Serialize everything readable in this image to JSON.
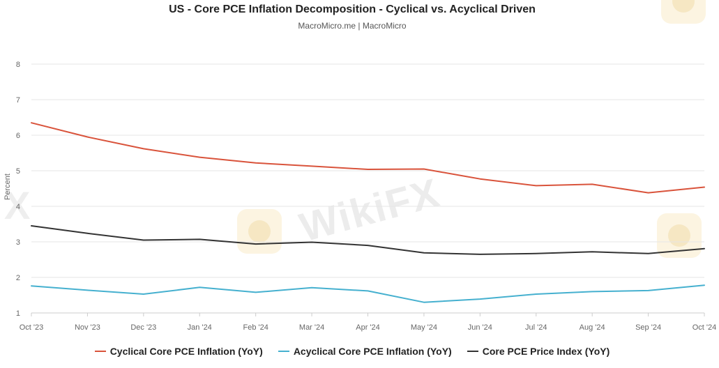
{
  "header": {
    "title": "US - Core PCE Inflation Decomposition - Cyclical vs. Acyclical Driven",
    "subtitle": "MacroMicro.me | MacroMicro"
  },
  "watermark": {
    "text": "WikiFX",
    "edge_text": "X"
  },
  "chart_data": {
    "type": "line",
    "title": "US - Core PCE Inflation Decomposition - Cyclical vs. Acyclical Driven",
    "subtitle": "MacroMicro.me | MacroMicro",
    "xlabel": "",
    "ylabel": "Percent",
    "ylim": [
      1,
      8
    ],
    "yticks": [
      1,
      2,
      3,
      4,
      5,
      6,
      7,
      8
    ],
    "grid": true,
    "legend_position": "bottom",
    "categories": [
      "Oct '23",
      "Nov '23",
      "Dec '23",
      "Jan '24",
      "Feb '24",
      "Mar '24",
      "Apr '24",
      "May '24",
      "Jun '24",
      "Jul '24",
      "Aug '24",
      "Sep '24",
      "Oct '24"
    ],
    "series": [
      {
        "name": "Cyclical Core PCE Inflation (YoY)",
        "color": "#d9533b",
        "values": [
          6.35,
          5.95,
          5.62,
          5.38,
          5.22,
          5.13,
          5.04,
          5.05,
          4.77,
          4.58,
          4.62,
          4.38,
          4.54
        ]
      },
      {
        "name": "Acyclical Core PCE Inflation (YoY)",
        "color": "#45b0cf",
        "values": [
          1.76,
          1.64,
          1.53,
          1.72,
          1.58,
          1.71,
          1.62,
          1.3,
          1.39,
          1.53,
          1.6,
          1.63,
          1.78
        ]
      },
      {
        "name": "Core PCE Price Index (YoY)",
        "color": "#333333",
        "values": [
          3.45,
          3.24,
          3.05,
          3.07,
          2.94,
          2.99,
          2.9,
          2.69,
          2.65,
          2.67,
          2.72,
          2.67,
          2.81
        ]
      }
    ]
  }
}
